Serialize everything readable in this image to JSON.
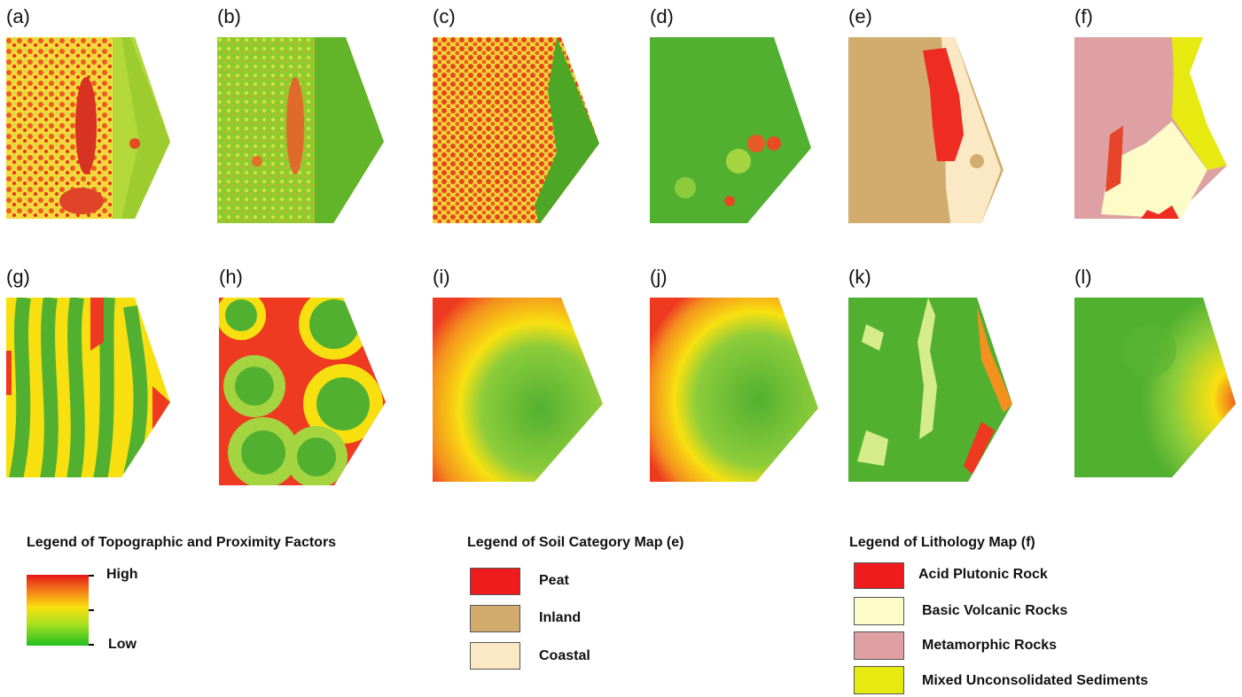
{
  "panels": [
    {
      "label": "(a)",
      "style": "noisy-red"
    },
    {
      "label": "(b)",
      "style": "noisy-green"
    },
    {
      "label": "(c)",
      "style": "noisy-red-dense"
    },
    {
      "label": "(d)",
      "style": "green-spots"
    },
    {
      "label": "(e)",
      "style": "soil"
    },
    {
      "label": "(f)",
      "style": "lithology"
    },
    {
      "label": "(g)",
      "style": "rivers"
    },
    {
      "label": "(h)",
      "style": "blobs"
    },
    {
      "label": "(i)",
      "style": "radial-a"
    },
    {
      "label": "(j)",
      "style": "radial-b"
    },
    {
      "label": "(k)",
      "style": "green-yellow"
    },
    {
      "label": "(l)",
      "style": "green-right-red"
    }
  ],
  "legend_topo": {
    "title": "Legend of Topographic and Proximity Factors",
    "high": "High",
    "low": "Low",
    "colors": [
      "#e41818",
      "#f8e010",
      "#22c020"
    ]
  },
  "legend_soil": {
    "title": "Legend of Soil Category Map (e)",
    "items": [
      {
        "label": "Peat",
        "color": "#ee1c1c"
      },
      {
        "label": "Inland",
        "color": "#d2ac6c"
      },
      {
        "label": "Coastal",
        "color": "#fbe8c4"
      }
    ]
  },
  "legend_litho": {
    "title": "Legend of Lithology Map (f)",
    "items": [
      {
        "label": "Acid Plutonic Rock",
        "color": "#ee1c1c"
      },
      {
        "label": "Basic Volcanic Rocks",
        "color": "#fdfbc8"
      },
      {
        "label": "Metamorphic Rocks",
        "color": "#dea0a2"
      },
      {
        "label": "Mixed Unconsolidated Sediments",
        "color": "#e6ea10"
      }
    ]
  }
}
